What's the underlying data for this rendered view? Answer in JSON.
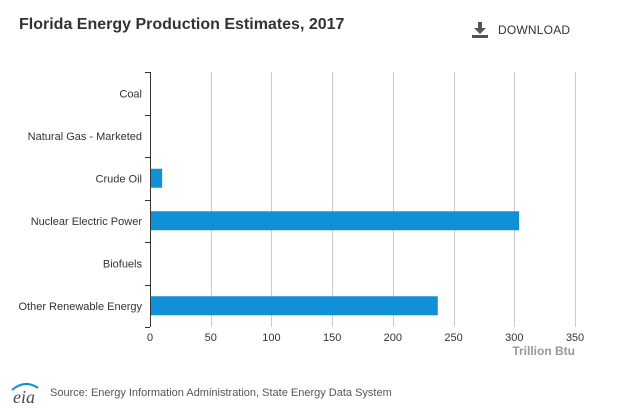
{
  "header": {
    "title": "Florida Energy Production Estimates, 2017",
    "download_label": "DOWNLOAD"
  },
  "footer": {
    "logo_text": "eia",
    "source": "Source: Energy Information Administration, State Energy Data System"
  },
  "colors": {
    "bar": "#1090d6",
    "grid": "#cccccc",
    "axis": "#333333"
  },
  "chart_data": {
    "type": "bar",
    "orientation": "horizontal",
    "title": "Florida Energy Production Estimates, 2017",
    "xlabel": "Trillion Btu",
    "ylabel": "",
    "categories": [
      "Coal",
      "Natural Gas - Marketed",
      "Crude Oil",
      "Nuclear Electric Power",
      "Biofuels",
      "Other Renewable Energy"
    ],
    "values": [
      0,
      0,
      10,
      304,
      0,
      237
    ],
    "xlim": [
      0,
      350
    ],
    "xticks": [
      0,
      50,
      100,
      150,
      200,
      250,
      300,
      350
    ],
    "grid": true,
    "legend": "none"
  }
}
